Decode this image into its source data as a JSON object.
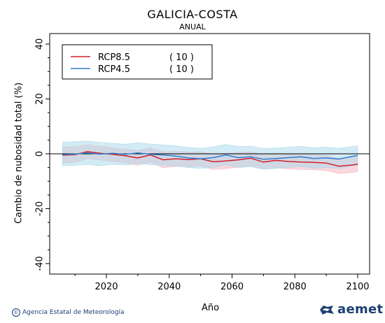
{
  "chart_data": {
    "type": "line",
    "title": "GALICIA-COSTA",
    "subtitle": "ANUAL",
    "xlabel": "Año",
    "ylabel": "Cambio de nubosidad total (%)",
    "xlim": [
      2006,
      2100
    ],
    "ylim": [
      -40,
      40
    ],
    "xticks": [
      2020,
      2040,
      2060,
      2080,
      2100
    ],
    "yticks": [
      40,
      20,
      0,
      -20,
      -40
    ],
    "reference_line": 0,
    "legend_position": "top-left",
    "x": [
      2006,
      2010,
      2014,
      2018,
      2022,
      2026,
      2030,
      2034,
      2038,
      2042,
      2046,
      2050,
      2054,
      2058,
      2062,
      2066,
      2070,
      2074,
      2078,
      2082,
      2086,
      2090,
      2094,
      2098,
      2100
    ],
    "series": [
      {
        "name": "RCP8.5",
        "count_label": "( 10 )",
        "color": "#d11f2a",
        "band_color": "#f6b8c2",
        "values": [
          -0.5,
          -0.3,
          0.8,
          0.2,
          -0.2,
          -0.7,
          -1.5,
          -0.4,
          -2.2,
          -1.8,
          -2.1,
          -1.8,
          -2.9,
          -2.6,
          -2.2,
          -1.6,
          -3.0,
          -2.4,
          -2.8,
          -3.0,
          -3.1,
          -3.4,
          -4.5,
          -4.1,
          -3.8
        ],
        "upper": [
          2.5,
          2.6,
          3.3,
          2.8,
          2.2,
          1.6,
          1.2,
          2.2,
          0.8,
          0.9,
          0.6,
          0.7,
          0.0,
          0.2,
          0.4,
          0.8,
          -0.4,
          0.1,
          -0.2,
          -0.4,
          -0.4,
          -0.6,
          -1.7,
          -1.2,
          -1.0
        ],
        "lower": [
          -3.4,
          -3.2,
          -1.7,
          -2.3,
          -2.8,
          -3.3,
          -4.2,
          -3.0,
          -5.1,
          -4.6,
          -4.8,
          -4.4,
          -5.7,
          -5.4,
          -4.9,
          -4.3,
          -5.6,
          -5.1,
          -5.5,
          -5.7,
          -5.8,
          -6.1,
          -7.2,
          -6.8,
          -6.5
        ]
      },
      {
        "name": "RCP4.5",
        "count_label": "( 10 )",
        "color": "#2f7fd0",
        "band_color": "#a8d8ea",
        "values": [
          -0.3,
          -0.1,
          0.3,
          -0.1,
          0.2,
          -0.2,
          0.3,
          -0.2,
          -0.4,
          -0.8,
          -1.5,
          -1.8,
          -1.4,
          -0.4,
          -1.4,
          -1.1,
          -2.0,
          -1.7,
          -1.4,
          -1.1,
          -1.7,
          -1.5,
          -1.9,
          -1.0,
          -0.6
        ],
        "upper": [
          4.2,
          4.4,
          4.6,
          4.2,
          3.8,
          3.5,
          4.0,
          3.6,
          3.2,
          2.9,
          2.3,
          2.0,
          2.5,
          3.4,
          2.6,
          2.8,
          1.9,
          2.1,
          2.4,
          2.7,
          2.2,
          2.4,
          2.0,
          2.6,
          2.9
        ],
        "lower": [
          -4.4,
          -4.2,
          -3.9,
          -4.3,
          -3.8,
          -4.1,
          -3.5,
          -4.0,
          -4.1,
          -4.4,
          -5.0,
          -5.3,
          -5.0,
          -4.0,
          -5.0,
          -4.7,
          -5.6,
          -5.3,
          -5.0,
          -4.6,
          -5.3,
          -5.0,
          -5.4,
          -4.5,
          -4.1
        ]
      }
    ]
  },
  "footer": {
    "copyright_symbol": "©",
    "credit": "Agencia Estatal de Meteorología",
    "logo_text": "aemet"
  }
}
